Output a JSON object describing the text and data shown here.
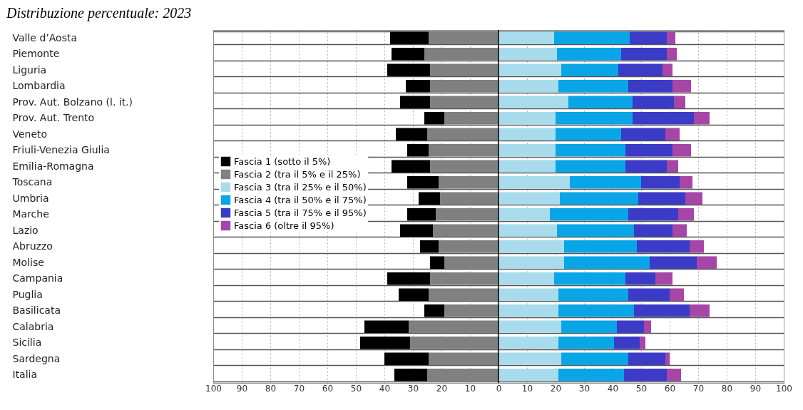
{
  "chart_data": {
    "type": "bar",
    "orientation": "horizontal",
    "stacked": true,
    "title": "Distribuzione percentuale: 2023",
    "categories": [
      "Valle d’Aosta",
      "Piemonte",
      "Liguria",
      "Lombardia",
      "Prov. Aut. Bolzano (l. it.)",
      "Prov. Aut. Trento",
      "Veneto",
      "Friuli-Venezia Giulia",
      "Emilia-Romagna",
      "Toscana",
      "Umbria",
      "Marche",
      "Lazio",
      "Abruzzo",
      "Molise",
      "Campania",
      "Puglia",
      "Basilicata",
      "Calabria",
      "Sicilia",
      "Sardegna",
      "Italia"
    ],
    "series": [
      {
        "name": "Fascia 1 (sotto il 5%)",
        "color": "#000000",
        "values": [
          -13.5,
          -11.5,
          -15,
          -8.5,
          -10.5,
          -7,
          -11,
          -7.5,
          -13.5,
          -11,
          -7.5,
          -10,
          -11.5,
          -6.5,
          -5,
          -15,
          -10.5,
          -7,
          -15.5,
          -17.5,
          -15.5,
          -11.5
        ]
      },
      {
        "name": "Fascia 2 (tra il 5% e il 25%)",
        "color": "#808080",
        "values": [
          -24.5,
          -26,
          -24,
          -24,
          -24,
          -19,
          -25,
          -24.5,
          -24,
          -21,
          -20.5,
          -22,
          -23,
          -21,
          -19,
          -24,
          -24.5,
          -19,
          -31.5,
          -31,
          -24.5,
          -25
        ]
      },
      {
        "name": "Fascia 3 (tra il 25% e il 50%)",
        "color": "#a8dcec",
        "values": [
          19.5,
          20.5,
          22,
          21,
          24.5,
          20,
          20,
          20,
          20,
          25,
          21.5,
          18,
          20.5,
          23,
          23,
          19.5,
          21,
          21,
          22,
          21,
          22,
          21
        ]
      },
      {
        "name": "Fascia 4 (tra il 50% e il 75%)",
        "color": "#0aa5e6",
        "values": [
          26.5,
          22.5,
          20,
          24.5,
          22.5,
          27,
          23,
          24.5,
          24.5,
          25,
          27.5,
          27.5,
          27,
          25.5,
          30,
          25,
          24.5,
          26.5,
          19.5,
          19.5,
          23.5,
          23
        ]
      },
      {
        "name": "Fascia 5 (tra il 75% e il 95%)",
        "color": "#3b3bc8",
        "values": [
          13,
          16,
          15.5,
          15.5,
          14.5,
          21.5,
          15.5,
          16.5,
          14.5,
          13.5,
          16.5,
          17.5,
          13.5,
          18.5,
          16.5,
          10.5,
          14.5,
          19.5,
          9.5,
          9,
          13,
          15
        ]
      },
      {
        "name": "Fascia 6 (oltre il 95%)",
        "color": "#a646a6",
        "values": [
          3,
          3.5,
          3.5,
          6.5,
          4,
          5.5,
          5,
          6.5,
          4,
          4.5,
          6,
          5.5,
          5,
          5,
          7,
          6,
          5,
          7,
          2.5,
          2,
          1.5,
          5
        ]
      }
    ],
    "xlim": [
      -100,
      100
    ],
    "xticks": [
      {
        "value": -100,
        "label": "100"
      },
      {
        "value": -90,
        "label": "90"
      },
      {
        "value": -80,
        "label": "80"
      },
      {
        "value": -70,
        "label": "70"
      },
      {
        "value": -60,
        "label": "60"
      },
      {
        "value": -50,
        "label": "50"
      },
      {
        "value": -40,
        "label": "40"
      },
      {
        "value": -30,
        "label": "30"
      },
      {
        "value": -20,
        "label": "20"
      },
      {
        "value": -10,
        "label": "10"
      },
      0,
      10,
      20,
      30,
      40,
      50,
      60,
      70,
      80,
      90,
      100
    ],
    "ref_lines": [
      {
        "axis": "x",
        "value": 0,
        "color": "#000000"
      }
    ],
    "grid": true,
    "legend": "left"
  }
}
